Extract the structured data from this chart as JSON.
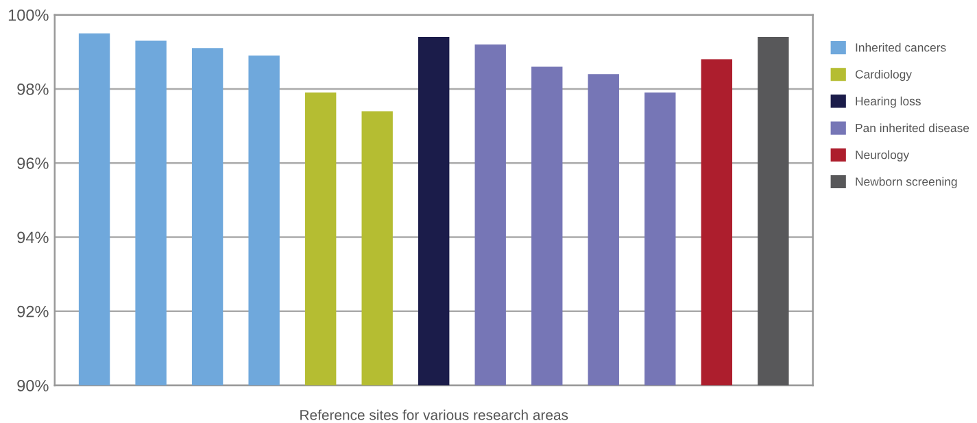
{
  "chart_data": {
    "type": "bar",
    "xlabel": "Reference sites for various research areas",
    "categories": [
      null,
      null,
      null,
      null,
      null,
      null,
      null,
      null,
      null,
      null,
      null,
      null,
      null
    ],
    "series": [
      {
        "name": "Inherited cancers",
        "color": "#6fa8dc",
        "values": [
          99.5,
          99.3,
          99.1,
          98.9,
          null,
          null,
          null,
          null,
          null,
          null,
          null,
          null,
          null
        ]
      },
      {
        "name": "Cardiology",
        "color": "#b5bd32",
        "values": [
          null,
          null,
          null,
          null,
          97.9,
          97.4,
          null,
          null,
          null,
          null,
          null,
          null,
          null
        ]
      },
      {
        "name": "Hearing loss",
        "color": "#1b1c4a",
        "values": [
          null,
          null,
          null,
          null,
          null,
          null,
          99.4,
          null,
          null,
          null,
          null,
          null,
          null
        ]
      },
      {
        "name": "Pan inherited disease",
        "color": "#7676b6",
        "values": [
          null,
          null,
          null,
          null,
          null,
          null,
          null,
          99.2,
          98.6,
          98.4,
          97.9,
          null,
          null
        ]
      },
      {
        "name": "Neurology",
        "color": "#ad1e2d",
        "values": [
          null,
          null,
          null,
          null,
          null,
          null,
          null,
          null,
          null,
          null,
          null,
          98.8,
          null
        ]
      },
      {
        "name": "Newborn screening",
        "color": "#58585a",
        "values": [
          null,
          null,
          null,
          null,
          null,
          null,
          null,
          null,
          null,
          null,
          null,
          null,
          99.4
        ]
      }
    ],
    "ylim": [
      90,
      100
    ],
    "yticks": [
      {
        "value": 90,
        "label": "90%"
      },
      {
        "value": 92,
        "label": "92%"
      },
      {
        "value": 94,
        "label": "94%"
      },
      {
        "value": 96,
        "label": "96%"
      },
      {
        "value": 98,
        "label": "98%"
      },
      {
        "value": 100,
        "label": "100%"
      }
    ],
    "grid": "y",
    "legend": "right"
  }
}
